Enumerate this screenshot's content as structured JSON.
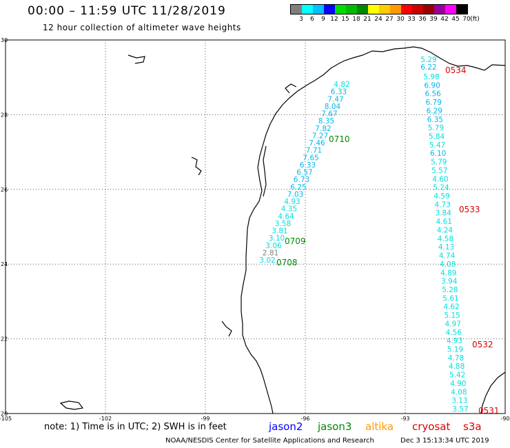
{
  "header": {
    "title": "00:00 – 11:59 UTC 11/28/2019",
    "subtitle": "12 hour collection of altimeter wave heights"
  },
  "legend": {
    "unit_label": "(ft)",
    "bins": [
      {
        "label": "3",
        "color": "#7f7f7f"
      },
      {
        "label": "6",
        "color": "#00ffff"
      },
      {
        "label": "9",
        "color": "#00bfff"
      },
      {
        "label": "12",
        "color": "#0000ff"
      },
      {
        "label": "15",
        "color": "#00dd00"
      },
      {
        "label": "18",
        "color": "#00bb00"
      },
      {
        "label": "21",
        "color": "#008800"
      },
      {
        "label": "24",
        "color": "#ffff00"
      },
      {
        "label": "27",
        "color": "#ffcc00"
      },
      {
        "label": "30",
        "color": "#ff9900"
      },
      {
        "label": "33",
        "color": "#ff0000"
      },
      {
        "label": "36",
        "color": "#cc0000"
      },
      {
        "label": "39",
        "color": "#990000"
      },
      {
        "label": "42",
        "color": "#990099"
      },
      {
        "label": "45",
        "color": "#ff00ff"
      },
      {
        "label": "70",
        "color": "#000000"
      }
    ]
  },
  "axes": {
    "lon_ticks": [
      "-105",
      "-102",
      "-99",
      "-96",
      "-93",
      "-90"
    ],
    "lat_ticks": [
      "30",
      "28",
      "26",
      "24",
      "22",
      "20"
    ],
    "lon_range": [
      -105,
      -90
    ],
    "lat_range": [
      20,
      30
    ]
  },
  "tracks": [
    {
      "id": "track-0710",
      "time_label": "0710",
      "label_color": "#008800",
      "values": [
        "4.82",
        "6.33",
        "7.47",
        "8.04",
        "7.67",
        "8.35",
        "7.82",
        "7.27",
        "7.46",
        "7.71",
        "7.65",
        "6.33",
        "6.57",
        "6.73",
        "6.25",
        "7.03",
        "4.93",
        "4.35",
        "4.64",
        "3.58",
        "3.81",
        "3.10",
        "3.06",
        "2.81",
        "3.02"
      ]
    },
    {
      "id": "track-0534",
      "time_label": "0534",
      "label_color": "#dd0000",
      "values": [
        "5.29",
        "6.22"
      ]
    },
    {
      "id": "track-0533",
      "time_label": "0533",
      "label_color": "#dd0000",
      "values": [
        "5.98",
        "6.90",
        "6.56",
        "6.79",
        "6.29",
        "6.35",
        "5.79",
        "5.84",
        "5.47",
        "6.10",
        "5.79",
        "5.57",
        "4.60",
        "5.24",
        "4.59",
        "4.73",
        "3.84",
        "4.61",
        "4.24",
        "4.58",
        "4.13",
        "4.74",
        "4.08",
        "4.89",
        "3.94",
        "5.28",
        "5.61",
        "4.62",
        "5.15",
        "4.97",
        "4.56",
        "4.93",
        "5.19",
        "4.78",
        "4.88",
        "5.42",
        "4.90",
        "4.08",
        "3.13",
        "3.57"
      ]
    }
  ],
  "pass_labels": [
    {
      "id": "label-0534",
      "text": "0534",
      "color": "#dd0000"
    },
    {
      "id": "label-0710",
      "text": "0710",
      "color": "#008800"
    },
    {
      "id": "label-0533",
      "text": "0533",
      "color": "#dd0000"
    },
    {
      "id": "label-0709",
      "text": "0709",
      "color": "#008800"
    },
    {
      "id": "label-0708",
      "text": "0708",
      "color": "#008800"
    },
    {
      "id": "label-0532",
      "text": "0532",
      "color": "#dd0000"
    },
    {
      "id": "label-0531",
      "text": "0531",
      "color": "#dd0000"
    }
  ],
  "footer": {
    "note": "note: 1) Time is in UTC; 2) SWH is in feet",
    "missions": [
      {
        "name": "jason2",
        "color": "#0000ff"
      },
      {
        "name": "jason3",
        "color": "#008800"
      },
      {
        "name": "altika",
        "color": "#ff9900"
      },
      {
        "name": "cryosat",
        "color": "#dd0000"
      },
      {
        "name": "s3a",
        "color": "#dd0000"
      }
    ],
    "credit": "NOAA/NESDIS Center for Satellite Applications and Research",
    "generated": "Dec  3 15:13:34 UTC 2019"
  }
}
